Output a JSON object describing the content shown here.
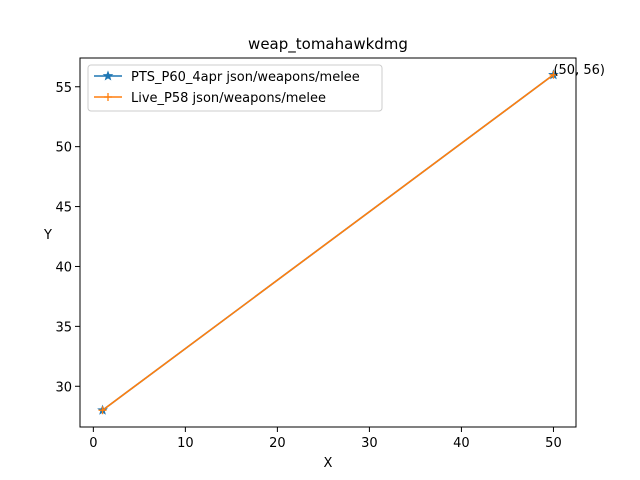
{
  "chart_data": {
    "type": "line",
    "title": "weap_tomahawkdmg",
    "xlabel": "X",
    "ylabel": "Y",
    "xlim": [
      -1.45,
      52.45
    ],
    "ylim": [
      26.6,
      57.4
    ],
    "xticks": [
      0,
      10,
      20,
      30,
      40,
      50
    ],
    "yticks": [
      30,
      35,
      40,
      45,
      50,
      55
    ],
    "grid": false,
    "legend_position": "top-left",
    "series": [
      {
        "name": "PTS_P60_4apr json/weapons/melee",
        "color": "#1f77b4",
        "marker": "star",
        "x": [
          1,
          50
        ],
        "y": [
          28,
          56
        ]
      },
      {
        "name": "Live_P58 json/weapons/melee",
        "color": "#ff7f0e",
        "marker": "plus",
        "x": [
          1,
          50
        ],
        "y": [
          28,
          56
        ]
      }
    ],
    "annotations": [
      {
        "text": "(50, 56)",
        "x": 50,
        "y": 56
      }
    ]
  }
}
